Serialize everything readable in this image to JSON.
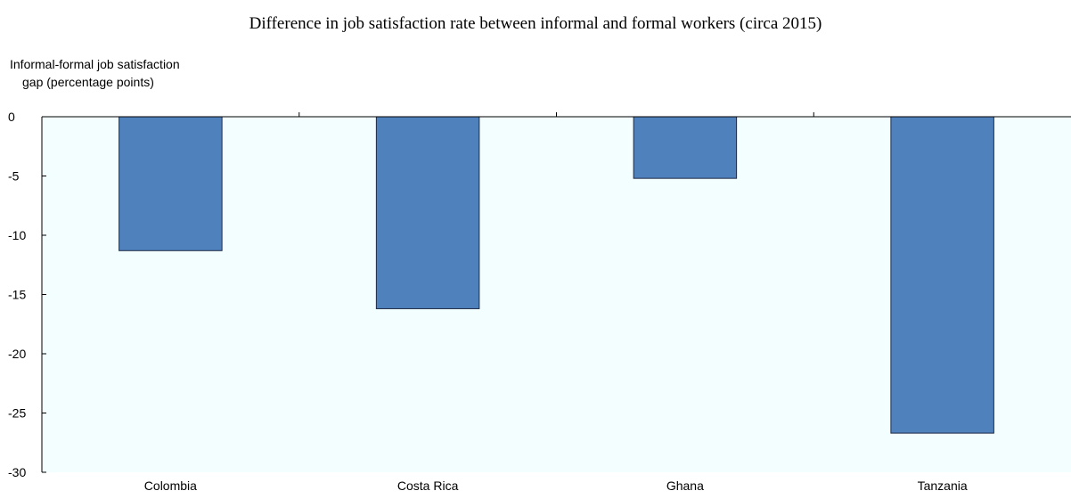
{
  "chart_data": {
    "type": "bar",
    "title": "Difference in job satisfaction rate between informal and formal workers (circa 2015)",
    "ylabel_lines": [
      "Informal-formal job satisfaction",
      "gap (percentage points)"
    ],
    "xlabel": "",
    "categories": [
      "Colombia",
      "Costa Rica",
      "Ghana",
      "Tanzania"
    ],
    "values": [
      -11.3,
      -16.2,
      -5.2,
      -26.7
    ],
    "ylim": [
      -30,
      0
    ],
    "yticks": [
      0,
      -5,
      -10,
      -15,
      -20,
      -25,
      -30
    ],
    "grid": false,
    "legend": "none",
    "colors": {
      "bar_fill": "#4f81bd",
      "bar_stroke": "#1f2a44",
      "plot_background": "#f2feff",
      "axis": "#000000"
    }
  }
}
